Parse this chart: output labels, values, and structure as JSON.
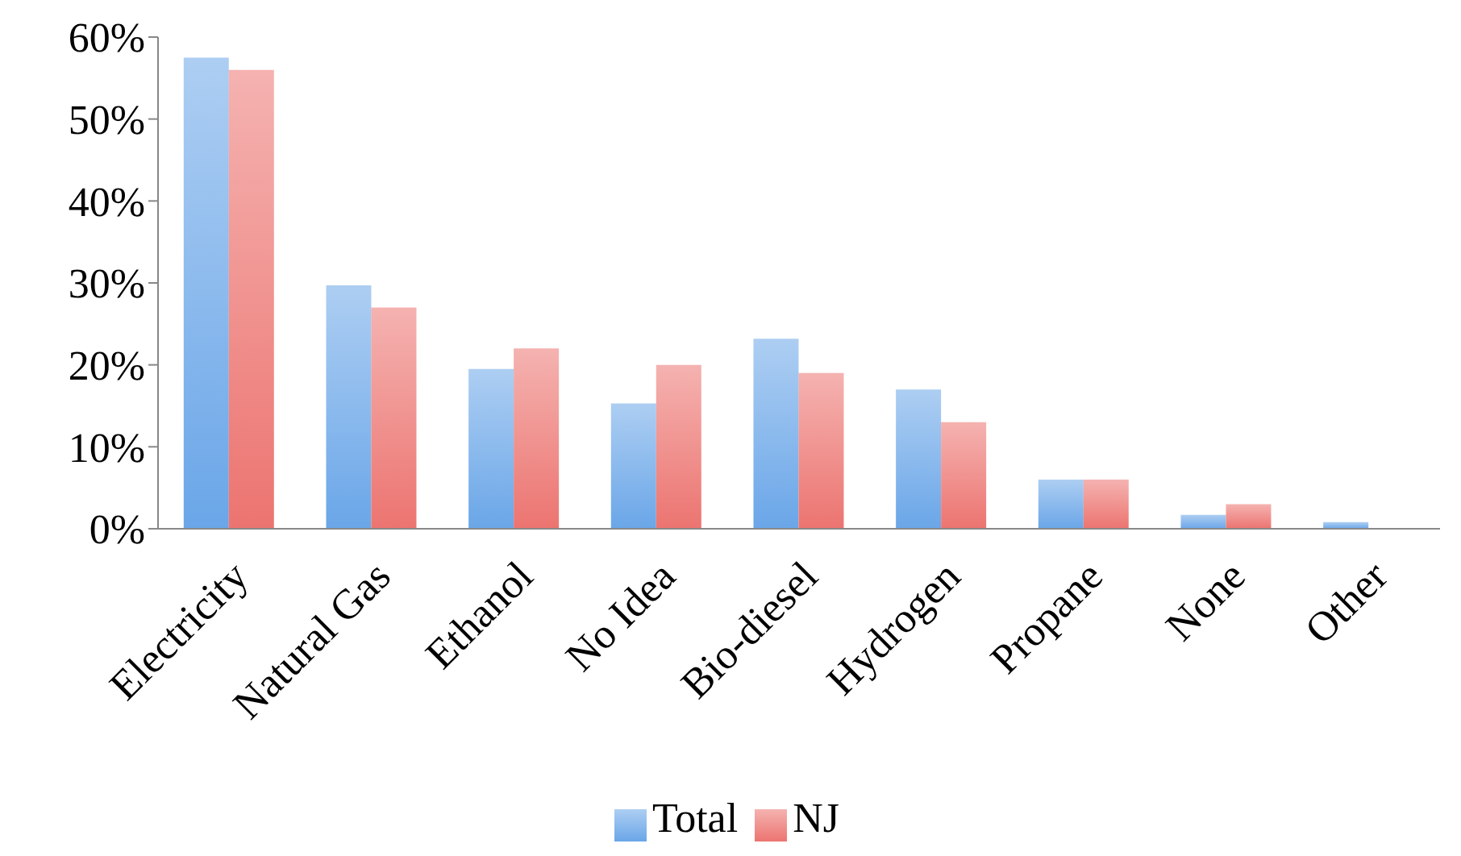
{
  "chart_data": {
    "type": "bar",
    "categories": [
      "Electricity",
      "Natural Gas",
      "Ethanol",
      "No Idea",
      "Bio-diesel",
      "Hydrogen",
      "Propane",
      "None",
      "Other"
    ],
    "series": [
      {
        "name": "Total",
        "color": "#6aa6e8",
        "values": [
          57.5,
          29.7,
          19.5,
          15.3,
          23.2,
          17,
          6,
          1.7,
          0.8
        ]
      },
      {
        "name": "NJ",
        "color": "#ec7470",
        "values": [
          56,
          27,
          22,
          20,
          19,
          13,
          6,
          3,
          0
        ]
      }
    ],
    "ylim": [
      0,
      60
    ],
    "yticks": [
      {
        "value": 0,
        "label": "0%"
      },
      {
        "value": 10,
        "label": "10%"
      },
      {
        "value": 20,
        "label": "20%"
      },
      {
        "value": 30,
        "label": "30%"
      },
      {
        "value": 40,
        "label": "40%"
      },
      {
        "value": 50,
        "label": "50%"
      },
      {
        "value": 60,
        "label": "60%"
      }
    ],
    "grid": false,
    "legend": "bottom"
  }
}
